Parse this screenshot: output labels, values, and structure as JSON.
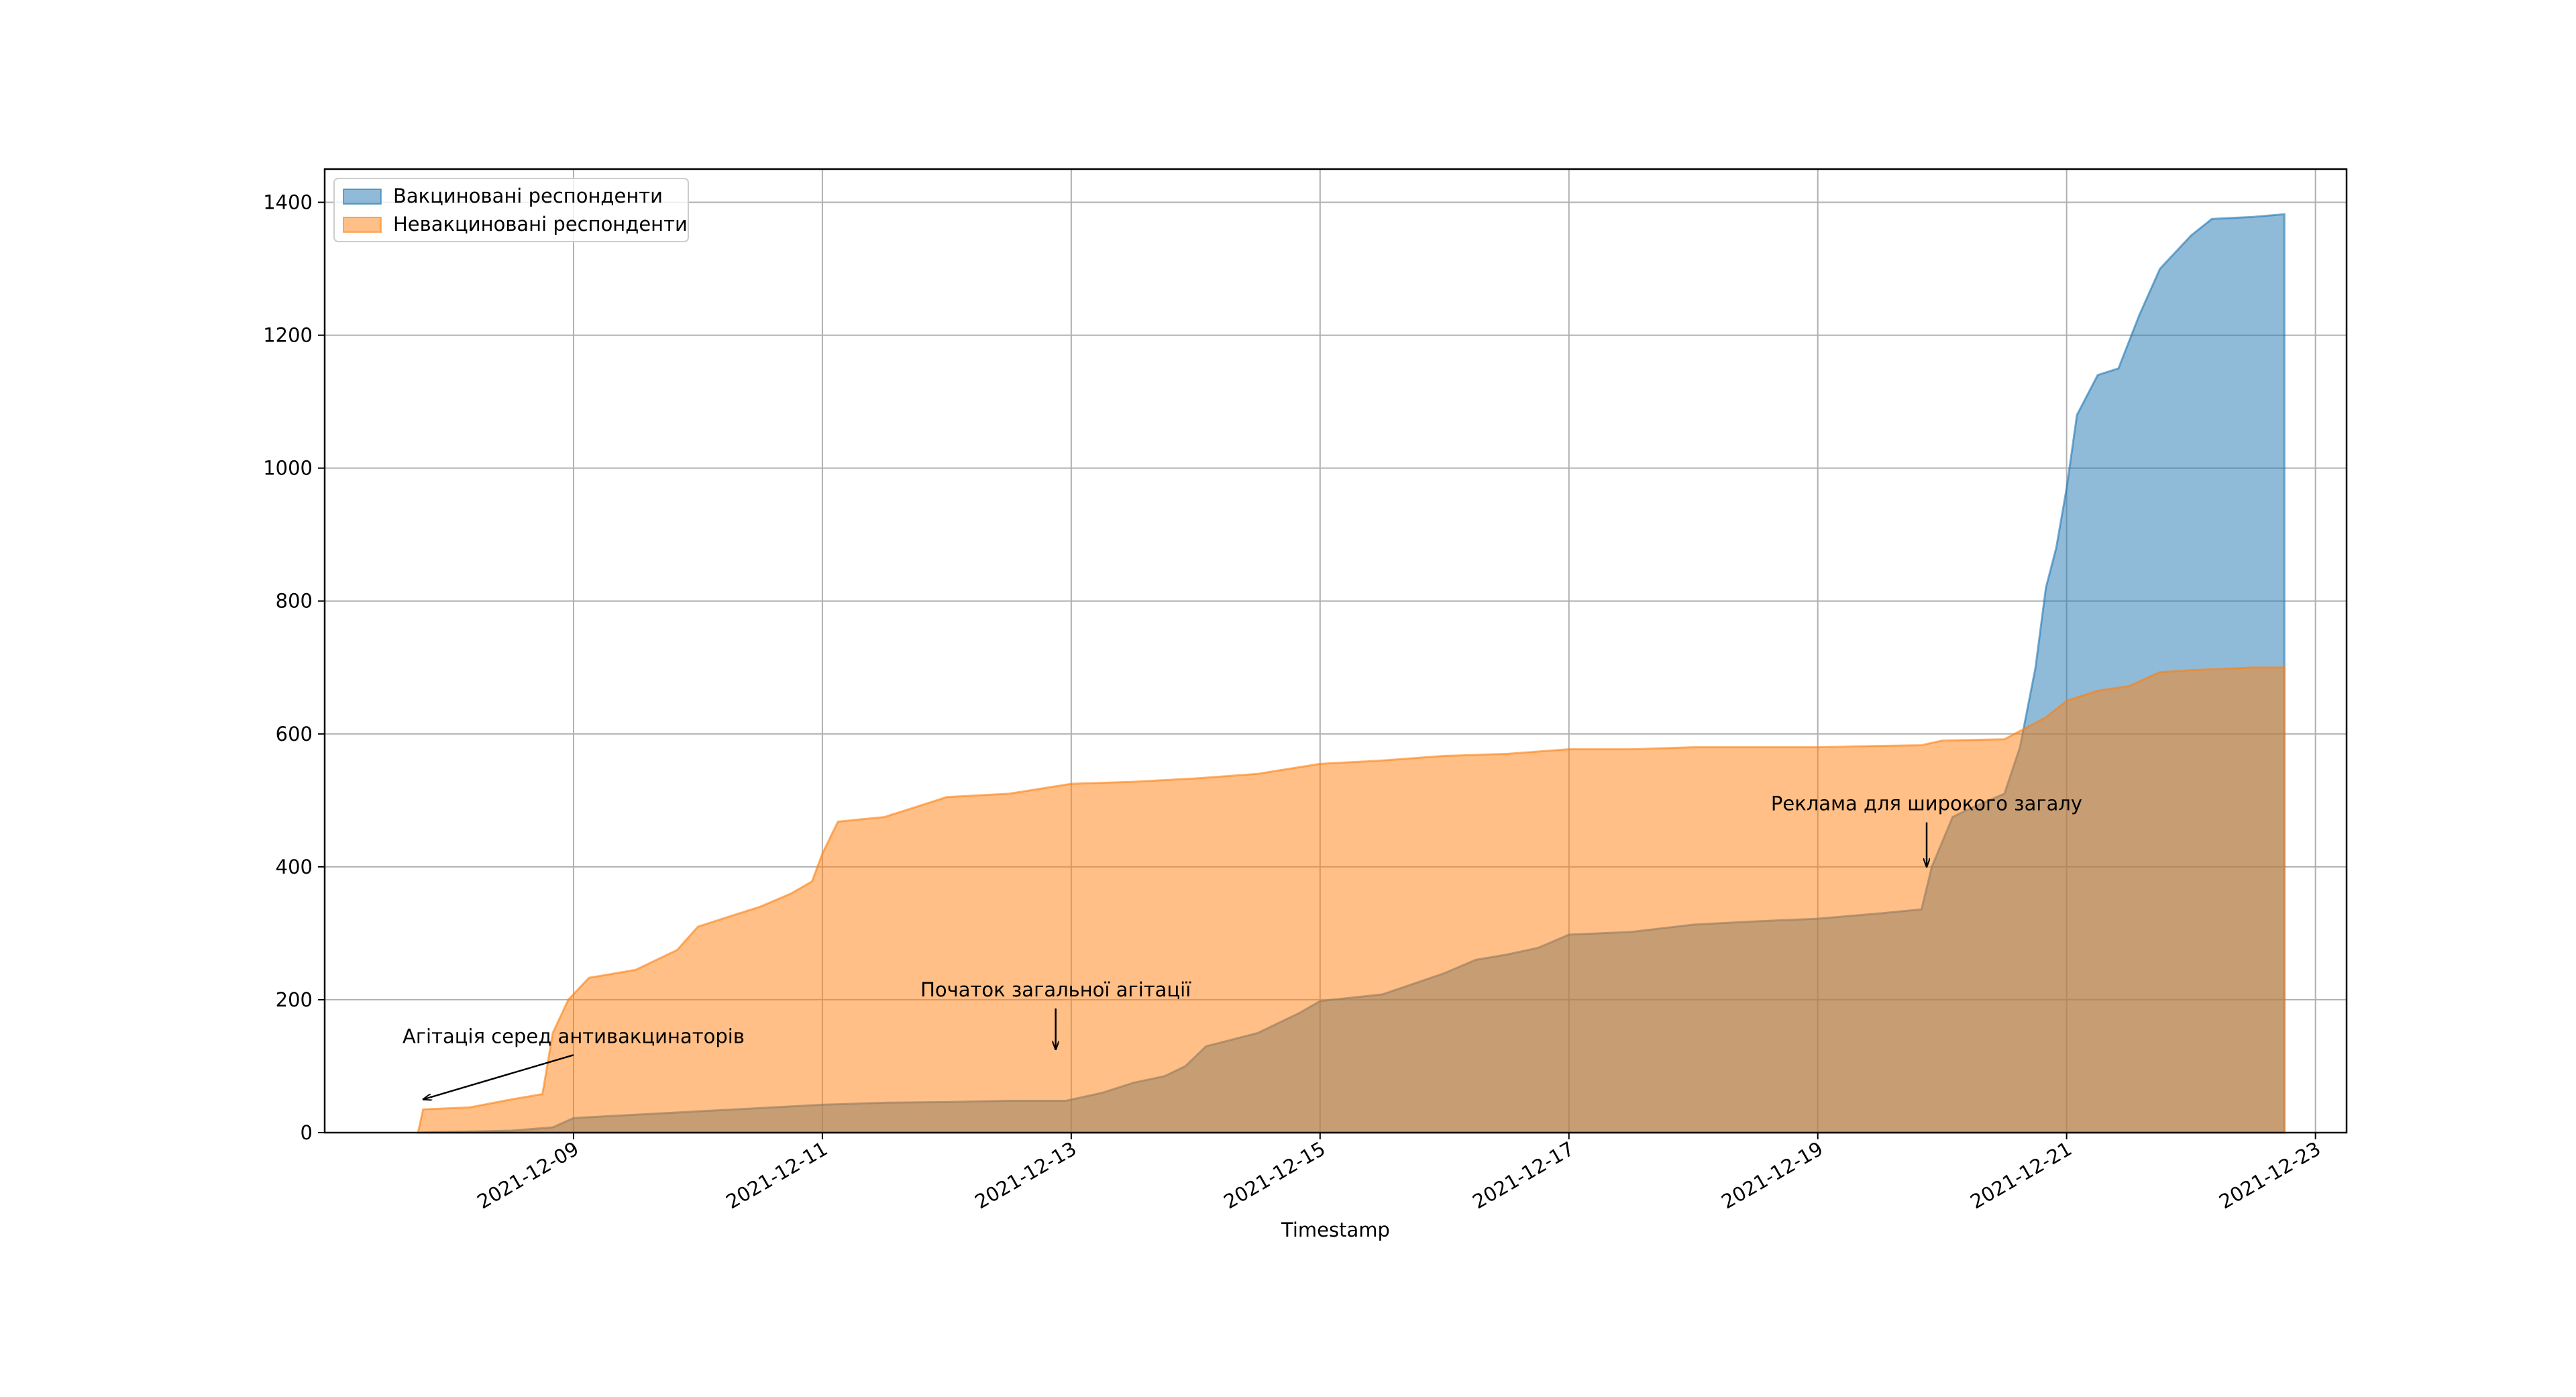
{
  "chart_data": {
    "type": "area",
    "title": "",
    "xlabel": "Timestamp",
    "ylabel": "",
    "xlim": [
      "2021-12-07T00:00",
      "2021-12-23T06:00"
    ],
    "ylim": [
      0,
      1450
    ],
    "grid": true,
    "legend": "upper-left",
    "x_ticks": [
      "2021-12-09",
      "2021-12-11",
      "2021-12-13",
      "2021-12-15",
      "2021-12-17",
      "2021-12-19",
      "2021-12-21",
      "2021-12-23"
    ],
    "y_ticks": [
      0,
      200,
      400,
      600,
      800,
      1000,
      1200,
      1400
    ],
    "series": [
      {
        "name": "Вакциновані респонденти",
        "color": "#1f77b4",
        "points": [
          [
            "2021-12-07T18:00",
            0
          ],
          [
            "2021-12-08T12:00",
            3
          ],
          [
            "2021-12-08T20:00",
            8
          ],
          [
            "2021-12-09T00:00",
            22
          ],
          [
            "2021-12-09T12:00",
            27
          ],
          [
            "2021-12-10T00:00",
            32
          ],
          [
            "2021-12-10T12:00",
            37
          ],
          [
            "2021-12-11T00:00",
            42
          ],
          [
            "2021-12-11T12:00",
            45
          ],
          [
            "2021-12-12T00:00",
            46
          ],
          [
            "2021-12-12T12:00",
            48
          ],
          [
            "2021-12-12T23:00",
            48
          ],
          [
            "2021-12-13T06:00",
            60
          ],
          [
            "2021-12-13T12:00",
            75
          ],
          [
            "2021-12-13T18:00",
            85
          ],
          [
            "2021-12-13T22:00",
            100
          ],
          [
            "2021-12-14T02:00",
            130
          ],
          [
            "2021-12-14T12:00",
            150
          ],
          [
            "2021-12-14T20:00",
            180
          ],
          [
            "2021-12-15T00:00",
            198
          ],
          [
            "2021-12-15T12:00",
            208
          ],
          [
            "2021-12-16T00:00",
            240
          ],
          [
            "2021-12-16T06:00",
            260
          ],
          [
            "2021-12-16T12:00",
            268
          ],
          [
            "2021-12-16T18:00",
            278
          ],
          [
            "2021-12-17T00:00",
            298
          ],
          [
            "2021-12-17T12:00",
            302
          ],
          [
            "2021-12-18T00:00",
            313
          ],
          [
            "2021-12-18T12:00",
            318
          ],
          [
            "2021-12-19T00:00",
            322
          ],
          [
            "2021-12-19T12:00",
            330
          ],
          [
            "2021-12-19T20:00",
            336
          ],
          [
            "2021-12-19T22:00",
            400
          ],
          [
            "2021-12-20T02:00",
            475
          ],
          [
            "2021-12-20T06:00",
            490
          ],
          [
            "2021-12-20T12:00",
            510
          ],
          [
            "2021-12-20T15:00",
            580
          ],
          [
            "2021-12-20T18:00",
            700
          ],
          [
            "2021-12-20T20:00",
            820
          ],
          [
            "2021-12-20T22:00",
            880
          ],
          [
            "2021-12-21T00:00",
            970
          ],
          [
            "2021-12-21T02:00",
            1080
          ],
          [
            "2021-12-21T06:00",
            1140
          ],
          [
            "2021-12-21T10:00",
            1150
          ],
          [
            "2021-12-21T14:00",
            1230
          ],
          [
            "2021-12-21T18:00",
            1300
          ],
          [
            "2021-12-22T00:00",
            1350
          ],
          [
            "2021-12-22T04:00",
            1375
          ],
          [
            "2021-12-22T12:00",
            1378
          ],
          [
            "2021-12-22T18:00",
            1382
          ]
        ]
      },
      {
        "name": "Невакциновані респонденти",
        "color": "#ff7f0e",
        "points": [
          [
            "2021-12-07T18:00",
            0
          ],
          [
            "2021-12-07T19:00",
            35
          ],
          [
            "2021-12-08T04:00",
            38
          ],
          [
            "2021-12-08T12:00",
            50
          ],
          [
            "2021-12-08T18:00",
            58
          ],
          [
            "2021-12-08T20:00",
            150
          ],
          [
            "2021-12-08T23:00",
            200
          ],
          [
            "2021-12-09T03:00",
            233
          ],
          [
            "2021-12-09T12:00",
            245
          ],
          [
            "2021-12-09T20:00",
            275
          ],
          [
            "2021-12-10T00:00",
            310
          ],
          [
            "2021-12-10T06:00",
            325
          ],
          [
            "2021-12-10T12:00",
            340
          ],
          [
            "2021-12-10T18:00",
            360
          ],
          [
            "2021-12-10T22:00",
            378
          ],
          [
            "2021-12-11T00:00",
            420
          ],
          [
            "2021-12-11T03:00",
            468
          ],
          [
            "2021-12-11T12:00",
            475
          ],
          [
            "2021-12-12T00:00",
            505
          ],
          [
            "2021-12-12T12:00",
            510
          ],
          [
            "2021-12-13T00:00",
            525
          ],
          [
            "2021-12-13T12:00",
            528
          ],
          [
            "2021-12-14T00:00",
            533
          ],
          [
            "2021-12-14T12:00",
            540
          ],
          [
            "2021-12-15T00:00",
            555
          ],
          [
            "2021-12-15T12:00",
            560
          ],
          [
            "2021-12-16T00:00",
            567
          ],
          [
            "2021-12-16T12:00",
            570
          ],
          [
            "2021-12-17T00:00",
            577
          ],
          [
            "2021-12-17T12:00",
            577
          ],
          [
            "2021-12-18T00:00",
            580
          ],
          [
            "2021-12-19T00:00",
            580
          ],
          [
            "2021-12-19T12:00",
            582
          ],
          [
            "2021-12-19T20:00",
            583
          ],
          [
            "2021-12-20T00:00",
            590
          ],
          [
            "2021-12-20T12:00",
            592
          ],
          [
            "2021-12-20T20:00",
            625
          ],
          [
            "2021-12-21T00:00",
            650
          ],
          [
            "2021-12-21T06:00",
            665
          ],
          [
            "2021-12-21T12:00",
            672
          ],
          [
            "2021-12-21T18:00",
            693
          ],
          [
            "2021-12-22T00:00",
            696
          ],
          [
            "2021-12-22T12:00",
            700
          ],
          [
            "2021-12-22T18:00",
            700
          ]
        ]
      }
    ],
    "annotations": [
      {
        "text": "Агітація серед антивакцинаторів",
        "x": "2021-12-09T00:00",
        "y": 135,
        "arrow_to": [
          "2021-12-07T19:00",
          50
        ]
      },
      {
        "text": "Початок загальної агітації",
        "x": "2021-12-12T21:00",
        "y": 205,
        "arrow_to": [
          "2021-12-12T21:00",
          125
        ]
      },
      {
        "text": "Реклама для широкого загалу",
        "x": "2021-12-19T21:00",
        "y": 485,
        "arrow_to": [
          "2021-12-19T21:00",
          400
        ]
      }
    ]
  }
}
